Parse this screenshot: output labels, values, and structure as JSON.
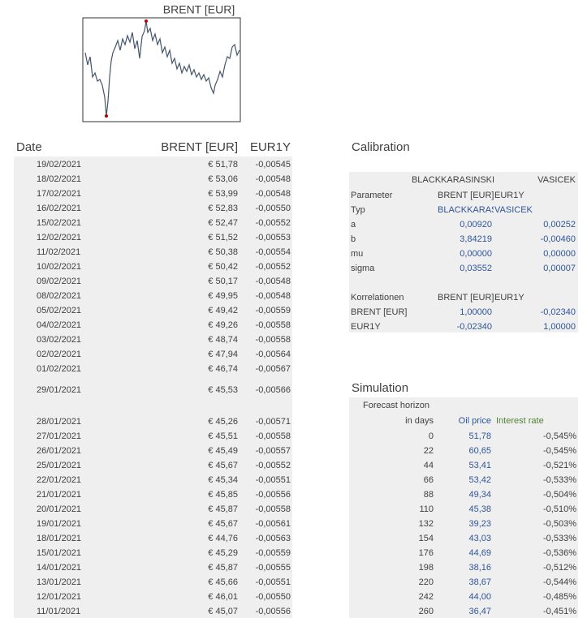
{
  "chart": {
    "title": "BRENT [EUR]"
  },
  "prices": {
    "headers": [
      "Date",
      "BRENT [EUR]",
      "EUR1Y"
    ],
    "rows": [
      [
        "19/02/2021",
        "€ 51,78",
        "-0,00545"
      ],
      [
        "18/02/2021",
        "€ 53,06",
        "-0,00548"
      ],
      [
        "17/02/2021",
        "€ 53,99",
        "-0,00548"
      ],
      [
        "16/02/2021",
        "€ 52,83",
        "-0,00550"
      ],
      [
        "15/02/2021",
        "€ 52,47",
        "-0,00552"
      ],
      [
        "12/02/2021",
        "€ 51,52",
        "-0,00553"
      ],
      [
        "11/02/2021",
        "€ 50,38",
        "-0,00554"
      ],
      [
        "10/02/2021",
        "€ 50,42",
        "-0,00552"
      ],
      [
        "09/02/2021",
        "€ 50,17",
        "-0,00548"
      ],
      [
        "08/02/2021",
        "€ 49,95",
        "-0,00548"
      ],
      [
        "05/02/2021",
        "€ 49,42",
        "-0,00559"
      ],
      [
        "04/02/2021",
        "€ 49,26",
        "-0,00558"
      ],
      [
        "03/02/2021",
        "€ 48,74",
        "-0,00558"
      ],
      [
        "02/02/2021",
        "€ 47,94",
        "-0,00564"
      ],
      [
        "01/02/2021",
        "€ 46,74",
        "-0,00567"
      ],
      [
        "29/01/2021",
        "€ 45,53",
        "-0,00566"
      ],
      [
        "28/01/2021",
        "€ 45,26",
        "-0,00571"
      ],
      [
        "27/01/2021",
        "€ 45,51",
        "-0,00558"
      ],
      [
        "26/01/2021",
        "€ 45,49",
        "-0,00557"
      ],
      [
        "25/01/2021",
        "€ 45,67",
        "-0,00552"
      ],
      [
        "22/01/2021",
        "€ 45,34",
        "-0,00551"
      ],
      [
        "21/01/2021",
        "€ 45,85",
        "-0,00556"
      ],
      [
        "20/01/2021",
        "€ 45,87",
        "-0,00558"
      ],
      [
        "19/01/2021",
        "€ 45,67",
        "-0,00561"
      ],
      [
        "18/01/2021",
        "€ 44,76",
        "-0,00563"
      ],
      [
        "15/01/2021",
        "€ 45,29",
        "-0,00559"
      ],
      [
        "14/01/2021",
        "€ 45,87",
        "-0,00555"
      ],
      [
        "13/01/2021",
        "€ 45,66",
        "-0,00551"
      ],
      [
        "12/01/2021",
        "€ 46,01",
        "-0,00550"
      ],
      [
        "11/01/2021",
        "€ 45,07",
        "-0,00556"
      ]
    ]
  },
  "calibration": {
    "title": "Calibration",
    "models": [
      "BLACKKARASINSKI",
      "VASICEK"
    ],
    "rows": [
      [
        "Parameter",
        "BRENT [EUR]",
        "EUR1Y"
      ],
      [
        "Typ",
        "BLACKKARASINSKI",
        "VASICEK"
      ],
      [
        "a",
        "0,00920",
        "0,00252"
      ],
      [
        "b",
        "3,84219",
        "-0,00460"
      ],
      [
        "mu",
        "0,00000",
        "0,00000"
      ],
      [
        "sigma",
        "0,03552",
        "0,00007"
      ]
    ],
    "correlations": [
      [
        "Korrelationen",
        "BRENT [EUR]",
        "EUR1Y"
      ],
      [
        "BRENT [EUR]",
        "1,00000",
        "-0,02340"
      ],
      [
        "EUR1Y",
        "-0,02340",
        "1,00000"
      ]
    ]
  },
  "simulation": {
    "title": "Simulation",
    "header_top": "Forecast horizon",
    "headers": [
      "in days",
      "Oil price",
      "Interest rate"
    ],
    "rows": [
      [
        "0",
        "51,78",
        "-0,545%"
      ],
      [
        "22",
        "60,65",
        "-0,545%"
      ],
      [
        "44",
        "53,41",
        "-0,521%"
      ],
      [
        "66",
        "53,42",
        "-0,533%"
      ],
      [
        "88",
        "49,34",
        "-0,504%"
      ],
      [
        "110",
        "45,38",
        "-0,510%"
      ],
      [
        "132",
        "39,23",
        "-0,503%"
      ],
      [
        "154",
        "43,03",
        "-0,533%"
      ],
      [
        "176",
        "44,69",
        "-0,536%"
      ],
      [
        "198",
        "38,16",
        "-0,512%"
      ],
      [
        "220",
        "38,67",
        "-0,544%"
      ],
      [
        "242",
        "44,00",
        "-0,485%"
      ],
      [
        "260",
        "36,47",
        "-0,451%"
      ]
    ]
  }
}
